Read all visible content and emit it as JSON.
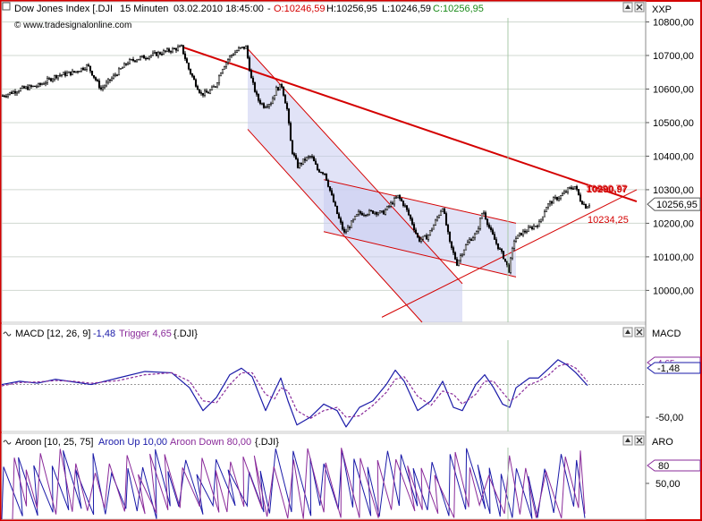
{
  "colors": {
    "frame": "#d40000",
    "price": "#000000",
    "trendline": "#d40000",
    "channel_fill": "#c9ccf0",
    "macd": "#1a1aa8",
    "trigger": "#8a2b9a",
    "aroon_up": "#1a1aa8",
    "aroon_down": "#8a2b9a",
    "open_value": "#d40000",
    "close_value": "#1a8a1a",
    "marker_bg": "#ffffff"
  },
  "icons": {
    "scroll_up": "up-arrow-icon",
    "scroll_down": "down-arrow-icon",
    "close": "close-icon"
  },
  "chart_data": [
    {
      "type": "candlestick",
      "panel": "price",
      "header": {
        "instrument": "Dow Jones Index [.DJI",
        "interval": "15 Minuten",
        "datetime": "03.02.2010 18:45:00",
        "open": "O:10246,59",
        "high": "H:10256,95",
        "low": "L:10246,59",
        "close": "C:10256,95",
        "sep": "-"
      },
      "watermark": "© www.tradesignalonline.com",
      "axis_label": "XXP",
      "y_ticks": [
        "10800,00",
        "10700,00",
        "10600,00",
        "10500,00",
        "10400,00",
        "10300,00",
        "10200,00",
        "10100,00",
        "10000,00"
      ],
      "y_tick_values": [
        10800,
        10700,
        10600,
        10500,
        10400,
        10300,
        10200,
        10100,
        10000
      ],
      "ylim": [
        9905,
        10860
      ],
      "last_value": "10256,95",
      "annotations": {
        "upper": "10290,97",
        "upper2": "10290,77",
        "lower": "10234,25"
      },
      "path_points": [
        [
          0,
          10580
        ],
        [
          20,
          10600
        ],
        [
          40,
          10610
        ],
        [
          60,
          10640
        ],
        [
          80,
          10650
        ],
        [
          95,
          10670
        ],
        [
          110,
          10600
        ],
        [
          125,
          10640
        ],
        [
          140,
          10680
        ],
        [
          150,
          10690
        ],
        [
          165,
          10700
        ],
        [
          180,
          10710
        ],
        [
          200,
          10725
        ],
        [
          208,
          10660
        ],
        [
          215,
          10620
        ],
        [
          222,
          10585
        ],
        [
          230,
          10590
        ],
        [
          238,
          10610
        ],
        [
          245,
          10660
        ],
        [
          255,
          10700
        ],
        [
          265,
          10720
        ],
        [
          272,
          10725
        ],
        [
          278,
          10630
        ],
        [
          285,
          10570
        ],
        [
          292,
          10550
        ],
        [
          300,
          10560
        ],
        [
          306,
          10600
        ],
        [
          312,
          10610
        ],
        [
          318,
          10540
        ],
        [
          323,
          10420
        ],
        [
          330,
          10370
        ],
        [
          338,
          10390
        ],
        [
          345,
          10400
        ],
        [
          352,
          10360
        ],
        [
          360,
          10350
        ],
        [
          368,
          10280
        ],
        [
          375,
          10220
        ],
        [
          382,
          10170
        ],
        [
          390,
          10200
        ],
        [
          398,
          10230
        ],
        [
          405,
          10230
        ],
        [
          415,
          10235
        ],
        [
          425,
          10230
        ],
        [
          435,
          10260
        ],
        [
          442,
          10280
        ],
        [
          450,
          10250
        ],
        [
          458,
          10200
        ],
        [
          465,
          10150
        ],
        [
          475,
          10160
        ],
        [
          483,
          10200
        ],
        [
          492,
          10250
        ],
        [
          500,
          10140
        ],
        [
          508,
          10080
        ],
        [
          515,
          10120
        ],
        [
          522,
          10150
        ],
        [
          530,
          10170
        ],
        [
          537,
          10240
        ],
        [
          545,
          10180
        ],
        [
          552,
          10140
        ],
        [
          560,
          10100
        ],
        [
          566,
          10060
        ],
        [
          572,
          10150
        ],
        [
          580,
          10170
        ],
        [
          590,
          10185
        ],
        [
          600,
          10200
        ],
        [
          608,
          10250
        ],
        [
          616,
          10270
        ],
        [
          624,
          10280
        ],
        [
          632,
          10300
        ],
        [
          640,
          10310
        ],
        [
          646,
          10270
        ],
        [
          652,
          10250
        ],
        [
          656,
          10256.95
        ]
      ],
      "trendlines": [
        {
          "x1": 202,
          "y1": 10725,
          "x2": 710,
          "y2": 10265,
          "role": "resistance"
        },
        {
          "x1": 425,
          "y1": 9920,
          "x2": 710,
          "y2": 10300,
          "role": "support"
        },
        {
          "x1": 360,
          "y1": 10330,
          "x2": 575,
          "y2": 10200,
          "role": "wedge-upper"
        },
        {
          "x1": 360,
          "y1": 10175,
          "x2": 575,
          "y2": 10040,
          "role": "wedge-lower"
        }
      ],
      "channels": [
        {
          "poly": [
            [
              275,
              10720
            ],
            [
              515,
              10020
            ],
            [
              515,
              9905
            ],
            [
              470,
              9905
            ],
            [
              275,
              10480
            ]
          ]
        },
        {
          "poly": [
            [
              360,
              10330
            ],
            [
              575,
              10200
            ],
            [
              575,
              10040
            ],
            [
              360,
              10175
            ]
          ]
        }
      ]
    },
    {
      "type": "line",
      "panel": "macd",
      "header": {
        "name": "MACD [12, 26, 9]",
        "macd_value": "-1,48",
        "trigger_label": "Trigger 4,65",
        "instrument": "{.DJI}"
      },
      "axis_label": "MACD",
      "y_ticks": [
        "-50,00"
      ],
      "y_tick_values": [
        -50
      ],
      "ylim": [
        -72,
        68
      ],
      "markers": {
        "trigger": "4,65",
        "macd": "-1,48"
      },
      "series": [
        {
          "role": "macd",
          "values": [
            [
              0,
              0
            ],
            [
              20,
              5
            ],
            [
              40,
              2
            ],
            [
              60,
              8
            ],
            [
              80,
              4
            ],
            [
              100,
              0
            ],
            [
              130,
              10
            ],
            [
              160,
              20
            ],
            [
              190,
              18
            ],
            [
              210,
              -5
            ],
            [
              225,
              -40
            ],
            [
              240,
              -20
            ],
            [
              255,
              15
            ],
            [
              268,
              25
            ],
            [
              280,
              12
            ],
            [
              295,
              -40
            ],
            [
              305,
              -10
            ],
            [
              312,
              10
            ],
            [
              320,
              -25
            ],
            [
              330,
              -62
            ],
            [
              345,
              -50
            ],
            [
              360,
              -30
            ],
            [
              375,
              -40
            ],
            [
              385,
              -65
            ],
            [
              400,
              -35
            ],
            [
              415,
              -25
            ],
            [
              430,
              0
            ],
            [
              440,
              22
            ],
            [
              450,
              5
            ],
            [
              465,
              -40
            ],
            [
              480,
              -25
            ],
            [
              493,
              5
            ],
            [
              505,
              -35
            ],
            [
              515,
              -40
            ],
            [
              530,
              0
            ],
            [
              540,
              15
            ],
            [
              550,
              -5
            ],
            [
              560,
              -30
            ],
            [
              568,
              -35
            ],
            [
              575,
              -5
            ],
            [
              590,
              10
            ],
            [
              600,
              10
            ],
            [
              612,
              25
            ],
            [
              622,
              38
            ],
            [
              632,
              30
            ],
            [
              642,
              18
            ],
            [
              655,
              -1.48
            ]
          ]
        },
        {
          "role": "trigger",
          "values": [
            [
              0,
              -2
            ],
            [
              20,
              3
            ],
            [
              40,
              4
            ],
            [
              60,
              6
            ],
            [
              80,
              5
            ],
            [
              100,
              2
            ],
            [
              130,
              6
            ],
            [
              160,
              15
            ],
            [
              190,
              18
            ],
            [
              210,
              5
            ],
            [
              225,
              -25
            ],
            [
              240,
              -28
            ],
            [
              255,
              0
            ],
            [
              268,
              18
            ],
            [
              280,
              18
            ],
            [
              295,
              -15
            ],
            [
              305,
              -22
            ],
            [
              312,
              -5
            ],
            [
              320,
              -10
            ],
            [
              330,
              -40
            ],
            [
              345,
              -52
            ],
            [
              360,
              -40
            ],
            [
              375,
              -35
            ],
            [
              385,
              -50
            ],
            [
              400,
              -48
            ],
            [
              415,
              -32
            ],
            [
              430,
              -12
            ],
            [
              440,
              8
            ],
            [
              450,
              12
            ],
            [
              465,
              -18
            ],
            [
              480,
              -32
            ],
            [
              493,
              -10
            ],
            [
              505,
              -15
            ],
            [
              515,
              -30
            ],
            [
              530,
              -15
            ],
            [
              540,
              5
            ],
            [
              550,
              5
            ],
            [
              560,
              -12
            ],
            [
              568,
              -25
            ],
            [
              575,
              -20
            ],
            [
              590,
              0
            ],
            [
              600,
              5
            ],
            [
              612,
              15
            ],
            [
              622,
              28
            ],
            [
              632,
              32
            ],
            [
              642,
              25
            ],
            [
              655,
              4.65
            ]
          ]
        }
      ]
    },
    {
      "type": "line",
      "panel": "aroon",
      "header": {
        "name": "Aroon [10, 25, 75]",
        "up_label": "Aroon Up 10,00",
        "down_label": "Aroon Down 80,00",
        "instrument": "{.DJI}"
      },
      "axis_label": "ARO",
      "y_ticks": [
        "50,00"
      ],
      "y_tick_values": [
        50
      ],
      "ylim": [
        0,
        100
      ],
      "markers": {
        "down": "80",
        "up": "10"
      },
      "series": [
        {
          "role": "aroon_up",
          "pattern": "oscillating 0-100",
          "period_px": 24,
          "end_value": 10
        },
        {
          "role": "aroon_down",
          "pattern": "oscillating 0-100",
          "period_px": 24,
          "end_value": 80
        }
      ]
    }
  ]
}
